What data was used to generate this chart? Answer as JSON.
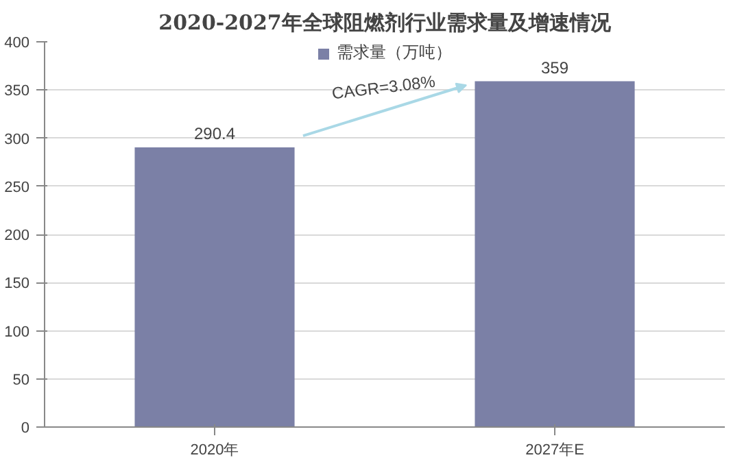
{
  "chart_data": {
    "type": "bar",
    "title": "2020-2027年全球阻燃剂行业需求量及增速情况",
    "categories": [
      "2020年",
      "2027年E"
    ],
    "series": [
      {
        "name": "需求量（万吨）",
        "color": "#7b80a6",
        "values": [
          290.4,
          359
        ]
      }
    ],
    "ylim": [
      0,
      400
    ],
    "yticks": [
      0,
      50,
      100,
      150,
      200,
      250,
      300,
      350,
      400
    ],
    "grid": "y",
    "legend": "top",
    "data_labels": true,
    "annotations": [
      "CAGR=3.08%"
    ]
  }
}
